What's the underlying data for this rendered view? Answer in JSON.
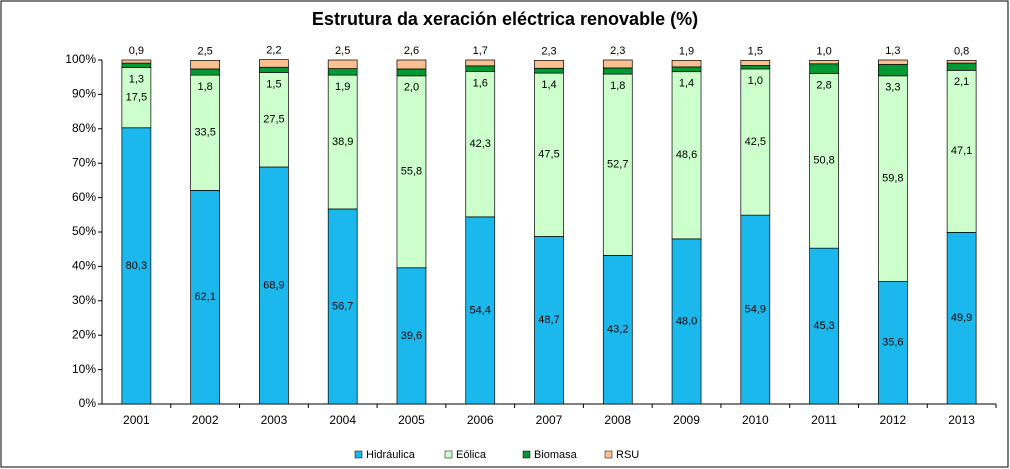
{
  "chart_data": {
    "type": "stacked_bar",
    "title": "Estrutura da xeración eléctrica renovable (%)",
    "categories": [
      "2001",
      "2002",
      "2003",
      "2004",
      "2005",
      "2006",
      "2007",
      "2008",
      "2009",
      "2010",
      "2011",
      "2012",
      "2013"
    ],
    "series": [
      {
        "name": "Hidráulica",
        "color": "#1ab8ec",
        "values": [
          80.3,
          62.1,
          68.9,
          56.7,
          39.6,
          54.4,
          48.7,
          43.2,
          48.0,
          54.9,
          45.3,
          35.6,
          49.9
        ],
        "value_labels": [
          "80,3",
          "62,1",
          "68,9",
          "56,7",
          "39,6",
          "54,4",
          "48,7",
          "43,2",
          "48,0",
          "54,9",
          "45,3",
          "35,6",
          "49,9"
        ]
      },
      {
        "name": "Eólica",
        "color": "#ccffcc",
        "values": [
          17.5,
          33.5,
          27.5,
          38.9,
          55.8,
          42.3,
          47.5,
          52.7,
          48.6,
          42.5,
          50.8,
          59.8,
          47.1
        ],
        "value_labels": [
          "17,5",
          "33,5",
          "27,5",
          "38,9",
          "55,8",
          "42,3",
          "47,5",
          "52,7",
          "48,6",
          "42,5",
          "50,8",
          "59,8",
          "47,1"
        ]
      },
      {
        "name": "Biomasa",
        "color": "#009933",
        "values": [
          1.3,
          1.8,
          1.5,
          1.9,
          2.0,
          1.6,
          1.4,
          1.8,
          1.4,
          1.0,
          2.8,
          3.3,
          2.1
        ],
        "value_labels": [
          "1,3",
          "1,8",
          "1,5",
          "1,9",
          "2,0",
          "1,6",
          "1,4",
          "1,8",
          "1,4",
          "1,0",
          "2,8",
          "3,3",
          "2,1"
        ]
      },
      {
        "name": "RSU",
        "color": "#fac090",
        "values": [
          0.9,
          2.5,
          2.2,
          2.5,
          2.6,
          1.7,
          2.3,
          2.3,
          1.9,
          1.5,
          1.0,
          1.3,
          0.8
        ],
        "value_labels": [
          "0,9",
          "2,5",
          "2,2",
          "2,5",
          "2,6",
          "1,7",
          "2,3",
          "2,3",
          "1,9",
          "1,5",
          "1,0",
          "1,3",
          "0,8"
        ]
      }
    ],
    "ylim": [
      0,
      100
    ],
    "yticks": [
      {
        "value": 0,
        "label": "0%"
      },
      {
        "value": 10,
        "label": "10%"
      },
      {
        "value": 20,
        "label": "20%"
      },
      {
        "value": 30,
        "label": "30%"
      },
      {
        "value": 40,
        "label": "40%"
      },
      {
        "value": 50,
        "label": "50%"
      },
      {
        "value": 60,
        "label": "60%"
      },
      {
        "value": 70,
        "label": "70%"
      },
      {
        "value": 80,
        "label": "80%"
      },
      {
        "value": 90,
        "label": "90%"
      },
      {
        "value": 100,
        "label": "100%"
      }
    ],
    "legend": "bottom"
  }
}
